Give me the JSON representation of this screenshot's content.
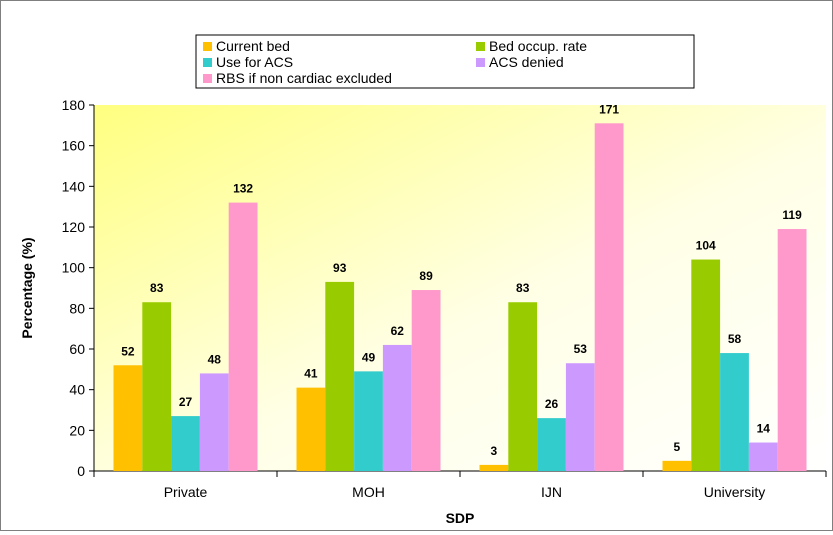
{
  "chart_data": {
    "type": "bar",
    "title": "",
    "xlabel": "SDP",
    "ylabel": "Percentage (%)",
    "categories": [
      "Private",
      "MOH",
      "IJN",
      "University"
    ],
    "ylim": [
      0,
      180
    ],
    "yticks": [
      0,
      20,
      40,
      60,
      80,
      100,
      120,
      140,
      160,
      180
    ],
    "grid": false,
    "legend_position": "top",
    "series": [
      {
        "name": "Current bed",
        "color": "#FFC000",
        "values": [
          52,
          41,
          3,
          5
        ]
      },
      {
        "name": "Bed occup. rate",
        "color": "#99CC00",
        "values": [
          83,
          93,
          83,
          104
        ]
      },
      {
        "name": "Use for ACS",
        "color": "#33CCCC",
        "values": [
          27,
          49,
          26,
          58
        ]
      },
      {
        "name": "ACS denied",
        "color": "#CC99FF",
        "values": [
          48,
          62,
          53,
          14
        ]
      },
      {
        "name": "RBS if non cardiac excluded",
        "color": "#FF99CC",
        "values": [
          132,
          89,
          171,
          119
        ]
      }
    ]
  }
}
